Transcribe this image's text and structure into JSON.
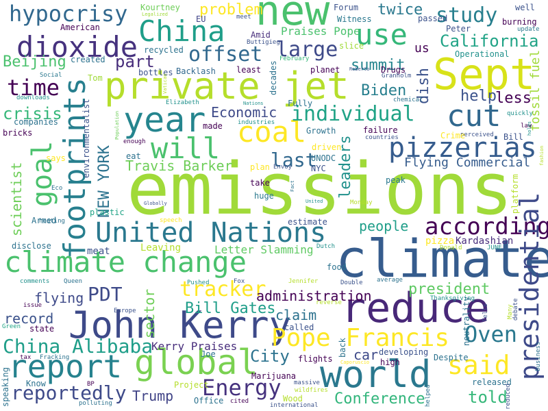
{
  "background": "#ffffff",
  "palette": [
    "#440154",
    "#46327e",
    "#365c8d",
    "#277f8e",
    "#1fa187",
    "#4ac16d",
    "#a0da39",
    "#fde725"
  ],
  "words": [
    {
      "id": "emissions",
      "text": "emissions",
      "color": "#a0da39"
    },
    {
      "id": "climate",
      "text": "climate",
      "color": "#365c8d"
    },
    {
      "id": "new",
      "text": "new",
      "color": "#4ac16d"
    },
    {
      "id": "sept",
      "text": "Sept",
      "color": "#d8e219"
    },
    {
      "id": "private-jet",
      "text": "private jet",
      "color": "#b5de2b"
    },
    {
      "id": "china",
      "text": "China",
      "color": "#1f9e89"
    },
    {
      "id": "use",
      "text": "use",
      "color": "#35b779"
    },
    {
      "id": "dioxide",
      "text": "dioxide",
      "color": "#46327e"
    },
    {
      "id": "hypocrisy",
      "text": "hypocrisy",
      "color": "#31688e"
    },
    {
      "id": "year",
      "text": "year",
      "color": "#25858e"
    },
    {
      "id": "cut",
      "text": "cut",
      "color": "#31688e"
    },
    {
      "id": "coal",
      "text": "coal",
      "color": "#fde725"
    },
    {
      "id": "will",
      "text": "will",
      "color": "#4ac16d"
    },
    {
      "id": "offset",
      "text": "offset",
      "color": "#31688e"
    },
    {
      "id": "large",
      "text": "large",
      "color": "#3e4a89"
    },
    {
      "id": "study",
      "text": "study",
      "color": "#277f8e"
    },
    {
      "id": "california",
      "text": "California",
      "color": "#20a386"
    },
    {
      "id": "footprints",
      "text": "footprints",
      "color": "#277f8e"
    },
    {
      "id": "goal",
      "text": "goal",
      "color": "#4ac16d"
    },
    {
      "id": "pizzerias",
      "text": "pizzerias",
      "color": "#365c8d"
    },
    {
      "id": "individual",
      "text": "individual",
      "color": "#20a386"
    },
    {
      "id": "united-nations",
      "text": "United Nations",
      "color": "#2a788e"
    },
    {
      "id": "according",
      "text": "according",
      "color": "#440154"
    },
    {
      "id": "climate-change",
      "text": "climate change",
      "color": "#4ac16d"
    },
    {
      "id": "john-kerry",
      "text": "John Kerry",
      "color": "#3e4a89"
    },
    {
      "id": "reduce",
      "text": "reduce",
      "color": "#482878"
    },
    {
      "id": "report",
      "text": "report",
      "color": "#26828e"
    },
    {
      "id": "global",
      "text": "global",
      "color": "#7ad151"
    },
    {
      "id": "world",
      "text": "world",
      "color": "#2a788e"
    },
    {
      "id": "said",
      "text": "said",
      "color": "#fde725"
    },
    {
      "id": "pope-francis",
      "text": "Pope Francis",
      "color": "#fde725"
    },
    {
      "id": "presidential",
      "text": "presidential",
      "color": "#3e4a89"
    },
    {
      "id": "oven",
      "text": "Oven",
      "color": "#2a788e"
    },
    {
      "id": "energy",
      "text": "Energy",
      "color": "#46327e"
    },
    {
      "id": "china-alibaba",
      "text": "China Alibaba",
      "color": "#1f9e89"
    },
    {
      "id": "reportedly",
      "text": "reportedly",
      "color": "#3e4a89"
    },
    {
      "id": "tracker",
      "text": "tracker",
      "color": "#fde725"
    },
    {
      "id": "bill-gates",
      "text": "Bill Gates",
      "color": "#1f9e89"
    },
    {
      "id": "pdt",
      "text": "PDT",
      "color": "#3e4a89"
    },
    {
      "id": "time",
      "text": "time",
      "color": "#440154"
    },
    {
      "id": "beijing",
      "text": "Beijing",
      "color": "#4ac16d"
    },
    {
      "id": "crisis",
      "text": "crisis",
      "color": "#35b779"
    },
    {
      "id": "scientist",
      "text": "scientist",
      "color": "#6ece58"
    },
    {
      "id": "new-york",
      "text": "NEW YORK",
      "color": "#2c728e"
    },
    {
      "id": "travis-barker",
      "text": "Travis Barker",
      "color": "#6ece58"
    },
    {
      "id": "economic",
      "text": "Economic",
      "color": "#3e4a89"
    },
    {
      "id": "last",
      "text": "last",
      "color": "#31688e"
    },
    {
      "id": "biden",
      "text": "Biden",
      "color": "#277f8e"
    },
    {
      "id": "summit",
      "text": "summit",
      "color": "#25858e"
    },
    {
      "id": "part",
      "text": "part",
      "color": "#472d7b"
    },
    {
      "id": "problem",
      "text": "problem",
      "color": "#fde725"
    },
    {
      "id": "twice",
      "text": "twice",
      "color": "#2a788e"
    },
    {
      "id": "praises-pope",
      "text": "Praises Pope",
      "color": "#4ac16d"
    },
    {
      "id": "us",
      "text": "us",
      "color": "#440154"
    },
    {
      "id": "help",
      "text": "help",
      "color": "#3b528b"
    },
    {
      "id": "less",
      "text": "less",
      "color": "#440154"
    },
    {
      "id": "dish",
      "text": "dish",
      "color": "#3b528b"
    },
    {
      "id": "fossil-fuel",
      "text": "fossil fuel",
      "color": "#a0da39"
    },
    {
      "id": "leaders",
      "text": "leaders",
      "color": "#21918c"
    },
    {
      "id": "flying-commercial",
      "text": "Flying Commercial",
      "color": "#365c8d"
    },
    {
      "id": "people",
      "text": "people",
      "color": "#1f9e89"
    },
    {
      "id": "administration",
      "text": "administration",
      "color": "#440154"
    },
    {
      "id": "president",
      "text": "president",
      "color": "#5ec962"
    },
    {
      "id": "sector",
      "text": "sector",
      "color": "#6ece58"
    },
    {
      "id": "claim",
      "text": "claim",
      "color": "#2c728e"
    },
    {
      "id": "record",
      "text": "record",
      "color": "#3b528b"
    },
    {
      "id": "flying",
      "text": "flying",
      "color": "#3e4a89"
    },
    {
      "id": "city",
      "text": "City",
      "color": "#2c728e"
    },
    {
      "id": "car",
      "text": "car",
      "color": "#3e4a89"
    },
    {
      "id": "told",
      "text": "told",
      "color": "#35b779"
    },
    {
      "id": "conference",
      "text": "Conference",
      "color": "#31b57b"
    },
    {
      "id": "trump",
      "text": "Trump",
      "color": "#414487"
    },
    {
      "id": "kerry-praises",
      "text": "Kerry Praises",
      "color": "#472d7b"
    },
    {
      "id": "letter-slamming",
      "text": "Letter Slamming",
      "color": "#5ec962"
    },
    {
      "id": "leaving",
      "text": "Leaving",
      "color": "#b5de2b"
    },
    {
      "id": "meat",
      "text": "meat",
      "color": "#3b528b"
    },
    {
      "id": "kardashian",
      "text": "Kardashian",
      "color": "#472d7b"
    },
    {
      "id": "pizza",
      "text": "pizza",
      "color": "#fde725"
    },
    {
      "id": "kourtney",
      "text": "Kourtney",
      "color": "#6ece58"
    },
    {
      "id": "legalized",
      "text": "Legalized",
      "color": "#a0da39"
    },
    {
      "id": "eu",
      "text": "EU",
      "color": "#414487"
    },
    {
      "id": "forum",
      "text": "Forum",
      "color": "#3b528b"
    },
    {
      "id": "witness",
      "text": "Witness",
      "color": "#2a788e"
    },
    {
      "id": "passed",
      "text": "passed",
      "color": "#3b528b"
    },
    {
      "id": "well",
      "text": "well",
      "color": "#3b528b"
    },
    {
      "id": "burning",
      "text": "burning",
      "color": "#440154"
    },
    {
      "id": "peter",
      "text": "Peter",
      "color": "#3b528b"
    },
    {
      "id": "update",
      "text": "update",
      "color": "#2a788e"
    },
    {
      "id": "operational",
      "text": "Operational",
      "color": "#21918c"
    },
    {
      "id": "american",
      "text": "American",
      "color": "#440154"
    },
    {
      "id": "meet",
      "text": "meet",
      "color": "#3b528b"
    },
    {
      "id": "amid",
      "text": "Amid",
      "color": "#472d7b"
    },
    {
      "id": "buttigieg",
      "text": "Buttigieg",
      "color": "#3b528b"
    },
    {
      "id": "slice",
      "text": "slice",
      "color": "#a0da39"
    },
    {
      "id": "recycled",
      "text": "recycled",
      "color": "#2c728e"
    },
    {
      "id": "created",
      "text": "created",
      "color": "#2c728e"
    },
    {
      "id": "bottles",
      "text": "bottles",
      "color": "#3b528b"
    },
    {
      "id": "backlash",
      "text": "Backlash",
      "color": "#31688e"
    },
    {
      "id": "least",
      "text": "least",
      "color": "#440154"
    },
    {
      "id": "decades",
      "text": "decades",
      "color": "#2c728e"
    },
    {
      "id": "planet",
      "text": "planet",
      "color": "#440154"
    },
    {
      "id": "drugs",
      "text": "Drugs",
      "color": "#440154"
    },
    {
      "id": "granholm",
      "text": "Granholm",
      "color": "#3b528b"
    },
    {
      "id": "roberto",
      "text": "Roberto",
      "color": "#3b528b"
    },
    {
      "id": "february",
      "text": "February",
      "color": "#35b779"
    },
    {
      "id": "social",
      "text": "Social",
      "color": "#2a788e"
    },
    {
      "id": "tom",
      "text": "Tom",
      "color": "#a0da39"
    },
    {
      "id": "vatican",
      "text": "Vatican",
      "color": "#b5de2b"
    },
    {
      "id": "fully",
      "text": "Fully",
      "color": "#2c728e"
    },
    {
      "id": "chemical",
      "text": "chemical",
      "color": "#2c728e"
    },
    {
      "id": "downloads",
      "text": "downloads",
      "color": "#21918c"
    },
    {
      "id": "elizabeth",
      "text": "Elizabeth",
      "color": "#21918c"
    },
    {
      "id": "nations",
      "text": "Nations",
      "color": "#21918c"
    },
    {
      "id": "quickly",
      "text": "quickly",
      "color": "#21918c"
    },
    {
      "id": "law",
      "text": "law",
      "color": "#440154"
    },
    {
      "id": "holds",
      "text": "holds",
      "color": "#21918c"
    },
    {
      "id": "companies",
      "text": "companies",
      "color": "#2c728e"
    },
    {
      "id": "environmentalist",
      "text": "environmentalist",
      "color": "#3b528b"
    },
    {
      "id": "made",
      "text": "made",
      "color": "#440154"
    },
    {
      "id": "industries",
      "text": "industries",
      "color": "#21918c"
    },
    {
      "id": "growth",
      "text": "Growth",
      "color": "#2c728e"
    },
    {
      "id": "failure",
      "text": "failure",
      "color": "#440154"
    },
    {
      "id": "countries",
      "text": "countries",
      "color": "#3b528b"
    },
    {
      "id": "perceived",
      "text": "perceived",
      "color": "#3b528b"
    },
    {
      "id": "bill",
      "text": "Bill",
      "color": "#3b528b"
    },
    {
      "id": "crime",
      "text": "Crime",
      "color": "#fde725"
    },
    {
      "id": "fashion",
      "text": "fashion",
      "color": "#b5de2b"
    },
    {
      "id": "bricks",
      "text": "bricks",
      "color": "#440154"
    },
    {
      "id": "population",
      "text": "Population",
      "color": "#6ece58"
    },
    {
      "id": "enough",
      "text": "enough",
      "color": "#440154"
    },
    {
      "id": "driven",
      "text": "driven",
      "color": "#fde725"
    },
    {
      "id": "unodc",
      "text": "UNODC",
      "color": "#2c728e"
    },
    {
      "id": "nyc",
      "text": "NYC",
      "color": "#3b528b"
    },
    {
      "id": "says",
      "text": "says",
      "color": "#fde725"
    },
    {
      "id": "eat",
      "text": "eat",
      "color": "#2c728e"
    },
    {
      "id": "plan",
      "text": "plan",
      "color": "#fde725"
    },
    {
      "id": "envoy",
      "text": "Envoy",
      "color": "#3b528b"
    },
    {
      "id": "take",
      "text": "take",
      "color": "#440154"
    },
    {
      "id": "fact",
      "text": "Fact",
      "color": "#2c728e"
    },
    {
      "id": "peak",
      "text": "peak",
      "color": "#2a788e"
    },
    {
      "id": "eco",
      "text": "Eco",
      "color": "#2c728e"
    },
    {
      "id": "armed",
      "text": "Armed",
      "color": "#2c728e"
    },
    {
      "id": "globally",
      "text": "Globally",
      "color": "#3b528b"
    },
    {
      "id": "huge",
      "text": "huge",
      "color": "#2a788e"
    },
    {
      "id": "monday",
      "text": "Monday",
      "color": "#b5de2b"
    },
    {
      "id": "united",
      "text": "United",
      "color": "#21918c"
    },
    {
      "id": "platform",
      "text": "platform",
      "color": "#b5de2b"
    },
    {
      "id": "heating",
      "text": "heating",
      "color": "#2c728e"
    },
    {
      "id": "plastic",
      "text": "plastic",
      "color": "#20a386"
    },
    {
      "id": "speech",
      "text": "speech",
      "color": "#fde725"
    },
    {
      "id": "estimate",
      "text": "estimate",
      "color": "#3b528b"
    },
    {
      "id": "disclose",
      "text": "disclose",
      "color": "#2c728e"
    },
    {
      "id": "dutch",
      "text": "Dutch",
      "color": "#21918c"
    },
    {
      "id": "donald",
      "text": "Donald",
      "color": "#b5de2b"
    },
    {
      "id": "june",
      "text": "JUNE",
      "color": "#21918c"
    },
    {
      "id": "comments",
      "text": "comments",
      "color": "#21918c"
    },
    {
      "id": "queen",
      "text": "Queen",
      "color": "#2c728e"
    },
    {
      "id": "pushed",
      "text": "Pushed",
      "color": "#21918c"
    },
    {
      "id": "fox",
      "text": "Fox",
      "color": "#3b528b"
    },
    {
      "id": "jennifer",
      "text": "Jennifer",
      "color": "#b5de2b"
    },
    {
      "id": "double",
      "text": "Double",
      "color": "#3b528b"
    },
    {
      "id": "average",
      "text": "average",
      "color": "#2c728e"
    },
    {
      "id": "food",
      "text": "food",
      "color": "#2c728e"
    },
    {
      "id": "reverse",
      "text": "reverse",
      "color": "#b5de2b"
    },
    {
      "id": "thanksgiving",
      "text": "Thanksgiving",
      "color": "#21918c"
    },
    {
      "id": "issue",
      "text": "issue",
      "color": "#440154"
    },
    {
      "id": "europe",
      "text": "Europe",
      "color": "#3b528b"
    },
    {
      "id": "tells",
      "text": "Tells",
      "color": "#3b528b"
    },
    {
      "id": "many",
      "text": "Many",
      "color": "#b5de2b"
    },
    {
      "id": "debate",
      "text": "debate",
      "color": "#3b528b"
    },
    {
      "id": "green",
      "text": "Green",
      "color": "#20a386"
    },
    {
      "id": "state",
      "text": "state",
      "color": "#440154"
    },
    {
      "id": "called",
      "text": "called",
      "color": "#3b528b"
    },
    {
      "id": "neutrality",
      "text": "neutrality",
      "color": "#2c728e"
    },
    {
      "id": "business",
      "text": "business",
      "color": "#2c728e"
    },
    {
      "id": "tax",
      "text": "tax",
      "color": "#440154"
    },
    {
      "id": "fracking",
      "text": "Fracking",
      "color": "#2c728e"
    },
    {
      "id": "joe",
      "text": "Joe",
      "color": "#2c728e"
    },
    {
      "id": "back",
      "text": "back",
      "color": "#2c728e"
    },
    {
      "id": "flights",
      "text": "flights",
      "color": "#440154"
    },
    {
      "id": "developing",
      "text": "developing",
      "color": "#3b528b"
    },
    {
      "id": "despite",
      "text": "Despite",
      "color": "#2c728e"
    },
    {
      "id": "high",
      "text": "high",
      "color": "#440154"
    },
    {
      "id": "caporuscio",
      "text": "Caporuscio",
      "color": "#fde725"
    },
    {
      "id": "marijuana",
      "text": "Marijuana",
      "color": "#440154"
    },
    {
      "id": "speaking",
      "text": "speaking",
      "color": "#2c728e"
    },
    {
      "id": "know",
      "text": "Know",
      "color": "#2c728e"
    },
    {
      "id": "bp",
      "text": "BP",
      "color": "#440154"
    },
    {
      "id": "project",
      "text": "Project",
      "color": "#b5de2b"
    },
    {
      "id": "massive",
      "text": "massive",
      "color": "#3b528b"
    },
    {
      "id": "wildfires",
      "text": "wildfires",
      "color": "#b5de2b"
    },
    {
      "id": "wood",
      "text": "Wood",
      "color": "#b5de2b"
    },
    {
      "id": "released",
      "text": "released",
      "color": "#2c728e"
    },
    {
      "id": "helped",
      "text": "helped",
      "color": "#2c728e"
    },
    {
      "id": "reduced",
      "text": "reduced",
      "color": "#3b528b"
    },
    {
      "id": "polluting",
      "text": "polluting",
      "color": "#2c728e"
    },
    {
      "id": "cited",
      "text": "cited",
      "color": "#440154"
    },
    {
      "id": "international",
      "text": "international",
      "color": "#3b528b"
    },
    {
      "id": "office",
      "text": "Office",
      "color": "#2c728e"
    }
  ]
}
